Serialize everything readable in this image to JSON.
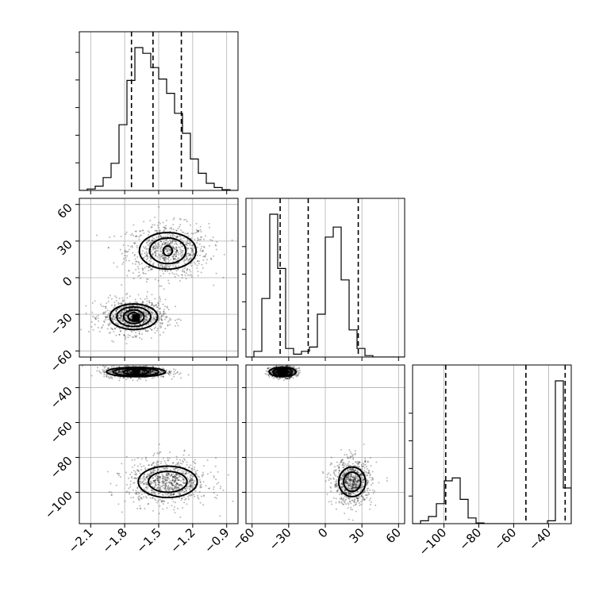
{
  "chart_data": {
    "type": "corner",
    "grid": true,
    "colors": {
      "points": "#000000",
      "fill_light": "#ececec",
      "fill_mid": "#bdbdbd",
      "fill_dark": "#555555",
      "peak": "#000000"
    },
    "parameters": [
      {
        "ticks": [
          -2.1,
          -1.8,
          -1.5,
          -1.2,
          -0.9
        ],
        "tick_labels": [
          "−2.1",
          "−1.8",
          "−1.5",
          "−1.2",
          "−0.9"
        ],
        "range": [
          -2.2,
          -0.8
        ],
        "quantiles": [
          -1.74,
          -1.55,
          -1.3
        ],
        "histogram": {
          "edges": [
            -2.2,
            -2.13,
            -2.06,
            -1.99,
            -1.92,
            -1.85,
            -1.78,
            -1.71,
            -1.64,
            -1.57,
            -1.5,
            -1.43,
            -1.36,
            -1.29,
            -1.22,
            -1.15,
            -1.08,
            -1.01,
            -0.94,
            -0.87,
            -0.8
          ],
          "counts": [
            0,
            10,
            30,
            90,
            190,
            460,
            770,
            1000,
            960,
            860,
            780,
            680,
            540,
            400,
            220,
            120,
            50,
            20,
            5,
            0
          ]
        }
      },
      {
        "ticks": [
          -60,
          -30,
          0,
          30,
          60
        ],
        "tick_labels": [
          "−60",
          "−30",
          "0",
          "30",
          "60"
        ],
        "range": [
          -65,
          65
        ],
        "quantiles": [
          -37,
          -14,
          27
        ],
        "histogram": {
          "edges": [
            -65,
            -58.5,
            -52,
            -45.5,
            -39,
            -32.5,
            -26,
            -19.5,
            -13,
            -6.5,
            0,
            6.5,
            13,
            19.5,
            26,
            32.5,
            39,
            45.5,
            52,
            58.5,
            65
          ],
          "counts": [
            0,
            40,
            410,
            1000,
            620,
            60,
            20,
            40,
            70,
            300,
            840,
            910,
            540,
            190,
            60,
            10,
            0,
            0,
            0,
            0
          ]
        }
      },
      {
        "ticks": [
          -100,
          -80,
          -60,
          -40
        ],
        "tick_labels": [
          "−100",
          "−80",
          "−60",
          "−40"
        ],
        "range": [
          -118,
          -27
        ],
        "quantiles": [
          -99,
          -53,
          -30.5
        ],
        "histogram": {
          "edges": [
            -118,
            -113.45,
            -108.9,
            -104.35,
            -99.8,
            -95.25,
            -90.7,
            -86.15,
            -81.6,
            -77.05,
            -72.5,
            -67.95,
            -63.4,
            -58.85,
            -54.3,
            -49.75,
            -45.2,
            -40.65,
            -36.1,
            -31.55,
            -27
          ],
          "counts": [
            0,
            20,
            50,
            140,
            300,
            320,
            170,
            40,
            5,
            0,
            0,
            0,
            0,
            0,
            0,
            0,
            0,
            20,
            1000,
            250
          ]
        }
      }
    ],
    "panels_2d": [
      {
        "row": 1,
        "col": 0,
        "clusters": [
          {
            "center": [
              -1.42,
              22
            ],
            "spread": [
              0.18,
              11
            ],
            "n": 850,
            "levels": [
              [
                0.25,
                15
              ],
              [
                0.16,
                10.5
              ],
              [
                0.04,
                4
              ]
            ],
            "fill_level": 1
          },
          {
            "center": [
              -1.72,
              -32
            ],
            "spread": [
              0.14,
              7
            ],
            "n": 850,
            "levels": [
              [
                0.21,
                10.5
              ],
              [
                0.15,
                8
              ],
              [
                0.09,
                5.5
              ],
              [
                0.05,
                3.3
              ]
            ],
            "fill_level": 3,
            "peak": [
              -1.7,
              -33
            ]
          }
        ]
      },
      {
        "row": 2,
        "col": 0,
        "clusters": [
          {
            "center": [
              -1.7,
              -31
            ],
            "spread": [
              0.14,
              1.6
            ],
            "n": 850,
            "levels": [
              [
                0.26,
                2.7
              ],
              [
                0.2,
                2.2
              ],
              [
                0.11,
                1.5
              ]
            ],
            "fill_level": 2,
            "peak": [
              -1.7,
              -31
            ]
          },
          {
            "center": [
              -1.42,
              -94
            ],
            "spread": [
              0.18,
              6.5
            ],
            "n": 850,
            "levels": [
              [
                0.26,
                9
              ],
              [
                0.17,
                6
              ]
            ],
            "fill_level": 1
          }
        ]
      },
      {
        "row": 2,
        "col": 1,
        "clusters": [
          {
            "center": [
              -35,
              -31
            ],
            "spread": [
              5.5,
              1.6
            ],
            "n": 800,
            "levels": [
              [
                11,
                2.7
              ],
              [
                8,
                2.2
              ],
              [
                4.5,
                1.5
              ]
            ],
            "fill_level": 2,
            "peak": [
              -35,
              -31
            ]
          },
          {
            "center": [
              22,
              -94
            ],
            "spread": [
              8,
              6.5
            ],
            "n": 800,
            "levels": [
              [
                11,
                8.5
              ],
              [
                7,
                5.5
              ]
            ],
            "fill_level": 1
          }
        ]
      }
    ]
  }
}
